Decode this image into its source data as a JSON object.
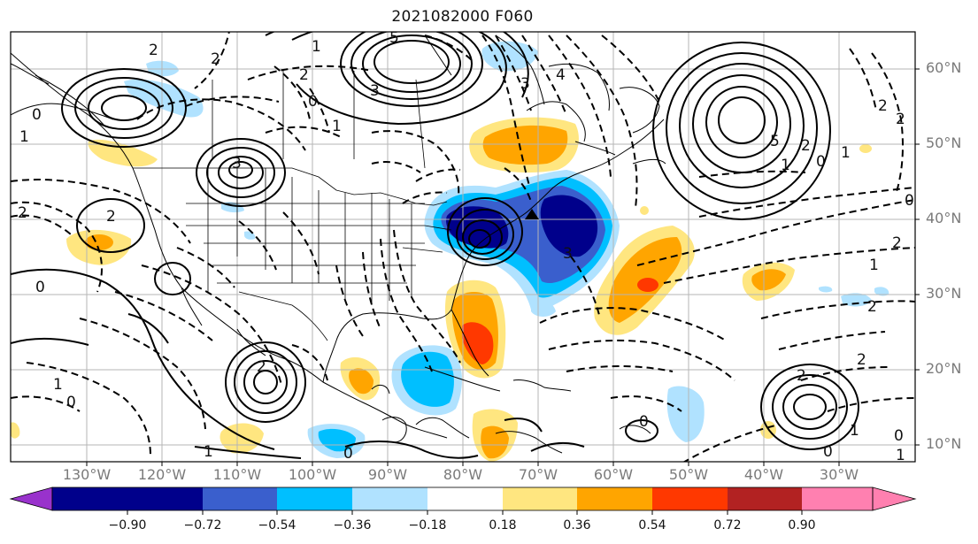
{
  "title": "2021082000 F060",
  "lat_labels": [
    "60°N",
    "50°N",
    "40°N",
    "30°N",
    "20°N",
    "10°N"
  ],
  "lon_labels": [
    "130°W",
    "120°W",
    "110°W",
    "100°W",
    "90°W",
    "80°W",
    "70°W",
    "60°W",
    "50°W",
    "40°W",
    "30°W"
  ],
  "colorbar": {
    "ticks": [
      "−0.90",
      "−0.72",
      "−0.54",
      "−0.36",
      "−0.18",
      "0.18",
      "0.36",
      "0.54",
      "0.72",
      "0.90"
    ],
    "colors": [
      "#9932cc",
      "#00008b",
      "#3a5fcd",
      "#00bfff",
      "#b0e2ff",
      "#ffffff",
      "#ffe680",
      "#ffa500",
      "#ff3800",
      "#b22222",
      "#ff80b0"
    ]
  },
  "contour_labels": [
    "2",
    "3",
    "2",
    "0",
    "1",
    "2",
    "3",
    "5",
    "0",
    "1",
    "2",
    "3",
    "4",
    "5",
    "2",
    "1",
    "0",
    "1",
    "2",
    "2",
    "0",
    "1",
    "3",
    "2",
    "2",
    "0",
    "0",
    "2",
    "1",
    "0",
    "0",
    "1",
    "2",
    "1",
    "0",
    "1",
    "2",
    "0",
    "1",
    "2"
  ],
  "fill_colors": {
    "light_yellow": "#ffe680",
    "orange": "#ffa500",
    "red_orange": "#ff3800",
    "light_blue": "#b0e2ff",
    "sky_blue": "#00bfff",
    "medium_blue": "#3a5fcd",
    "navy": "#00008b"
  }
}
